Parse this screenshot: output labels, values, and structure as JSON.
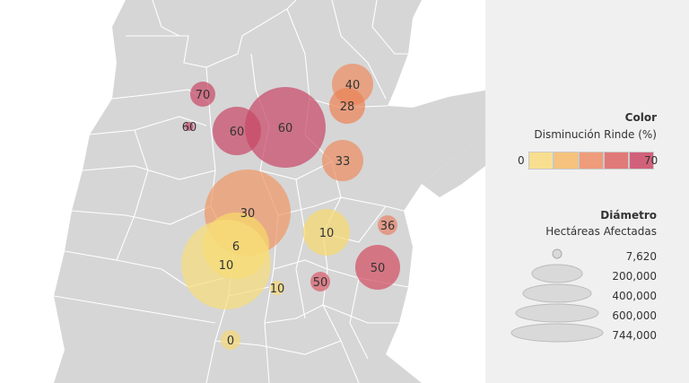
{
  "legend": {
    "color_title": "Color",
    "color_subtitle": "Disminución Rinde (%)",
    "color_min": "0",
    "color_max": "70",
    "swatches": [
      "#f7df8f",
      "#f6c27d",
      "#ee9c7a",
      "#e07a78",
      "#d1617a"
    ],
    "size_title": "Diámetro",
    "size_subtitle": "Hectáreas Afectadas",
    "sizes": [
      "7,620",
      "200,000",
      "400,000",
      "600,000",
      "744,000"
    ]
  },
  "bubbles": [
    {
      "label": "70",
      "color": "#c84a68"
    },
    {
      "label": "60",
      "color": "#c84a68"
    },
    {
      "label": "60",
      "color": "#c84a68"
    },
    {
      "label": "60",
      "color": "#c84a68"
    },
    {
      "label": "40",
      "color": "#ec8d63"
    },
    {
      "label": "28",
      "color": "#ec8358"
    },
    {
      "label": "33",
      "color": "#ec8d63"
    },
    {
      "label": "30",
      "color": "#ee9966"
    },
    {
      "label": "10",
      "color": "#f5d86f"
    },
    {
      "label": "36",
      "color": "#e8836b"
    },
    {
      "label": "6",
      "color": "#f7da6a"
    },
    {
      "label": "10",
      "color": "#f6dc7c"
    },
    {
      "label": "50",
      "color": "#d24f62"
    },
    {
      "label": "10",
      "color": "#f5d878"
    },
    {
      "label": "50",
      "color": "#d85e6c"
    },
    {
      "label": "0",
      "color": "#f5d878"
    }
  ]
}
